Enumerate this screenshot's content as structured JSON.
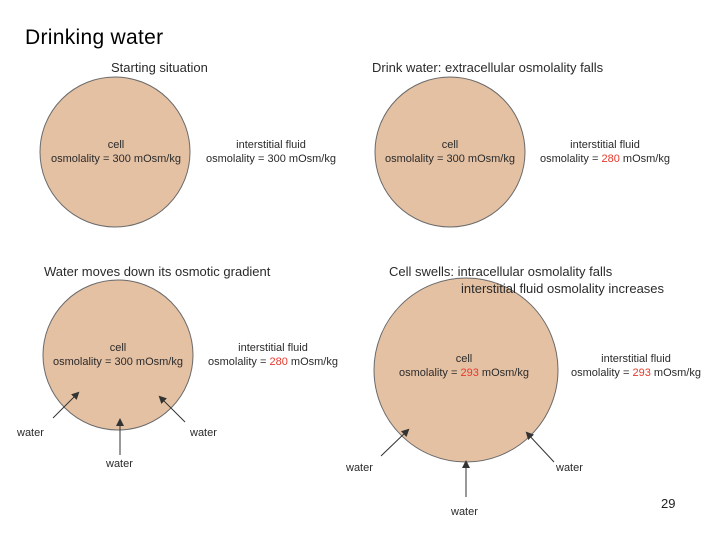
{
  "slide": {
    "title": "Drinking water",
    "page_number": "29"
  },
  "colors": {
    "cell_fill": "#e5c1a4",
    "cell_stroke": "#6a6a6a",
    "highlight": "#e8382c"
  },
  "panels": [
    {
      "title": "Starting situation",
      "cell_label": "cell",
      "cell_osm_prefix": "osmolality = ",
      "cell_osm_value": "300",
      "cell_osm_unit": " mOsm/kg",
      "fluid_label": "interstitial fluid",
      "fluid_osm_prefix": "osmolality = ",
      "fluid_osm_value": "300",
      "fluid_osm_unit": " mOsm/kg"
    },
    {
      "title": "Drink water: extracellular osmolality falls",
      "cell_label": "cell",
      "cell_osm_prefix": "osmolality = ",
      "cell_osm_value": "300",
      "cell_osm_unit": " mOsm/kg",
      "fluid_label": "interstitial fluid",
      "fluid_osm_prefix": "osmolality = ",
      "fluid_osm_value": "280",
      "fluid_osm_unit": " mOsm/kg"
    },
    {
      "title": "Water moves down its osmotic gradient",
      "cell_label": "cell",
      "cell_osm_prefix": "osmolality = ",
      "cell_osm_value": "300",
      "cell_osm_unit": " mOsm/kg",
      "fluid_label": "interstitial fluid",
      "fluid_osm_prefix": "osmolality = ",
      "fluid_osm_value": "280",
      "fluid_osm_unit": " mOsm/kg",
      "water_labels": [
        "water",
        "water",
        "water"
      ]
    },
    {
      "title_line1": "Cell swells: intracellular osmolality falls",
      "title_line2": "interstitial fluid osmolality increases",
      "cell_label": "cell",
      "cell_osm_prefix": "osmolality = ",
      "cell_osm_value": "293",
      "cell_osm_unit": " mOsm/kg",
      "fluid_label": "interstitial fluid",
      "fluid_osm_prefix": "osmolality = ",
      "fluid_osm_value": "293",
      "fluid_osm_unit": " mOsm/kg",
      "water_labels": [
        "water",
        "water",
        "water"
      ]
    }
  ]
}
